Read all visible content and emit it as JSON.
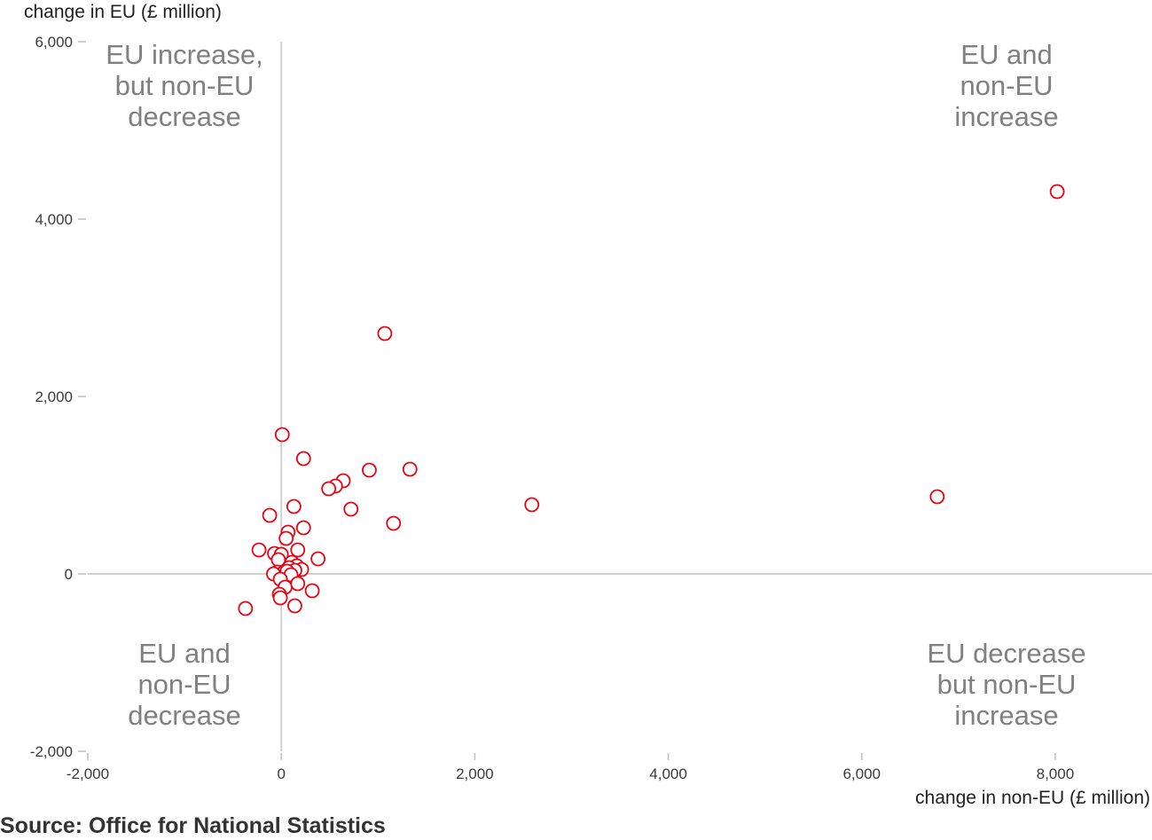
{
  "chart_data": {
    "type": "scatter",
    "xlabel": "change in non-EU (£ million)",
    "ylabel": "change in EU (£ million)",
    "xlim": [
      -2000,
      9000
    ],
    "ylim": [
      -2000,
      6000
    ],
    "x_ticks": [
      -2000,
      0,
      2000,
      4000,
      6000,
      8000
    ],
    "x_tick_labels": [
      "-2,000",
      "0",
      "2,000",
      "4,000",
      "6,000",
      "8,000"
    ],
    "y_ticks": [
      -2000,
      0,
      2000,
      4000,
      6000
    ],
    "y_tick_labels": [
      "-2,000",
      "0",
      "2,000",
      "4,000",
      "6,000"
    ],
    "grid": false,
    "marker_color": "#e30613",
    "quadrant_labels": {
      "top_left": [
        "EU increase,",
        "but non-EU",
        "decrease"
      ],
      "top_right": [
        "EU and",
        "non-EU",
        "increase"
      ],
      "bottom_left": [
        "EU and",
        "non-EU",
        "decrease"
      ],
      "bottom_right": [
        "EU decrease",
        "but non-EU",
        "increase"
      ]
    },
    "points": [
      {
        "x": 8020,
        "y": 4310
      },
      {
        "x": 6780,
        "y": 870
      },
      {
        "x": 1070,
        "y": 2710
      },
      {
        "x": 2590,
        "y": 780
      },
      {
        "x": 1330,
        "y": 1180
      },
      {
        "x": 910,
        "y": 1170
      },
      {
        "x": 1160,
        "y": 570
      },
      {
        "x": 10,
        "y": 1570
      },
      {
        "x": 230,
        "y": 1300
      },
      {
        "x": 640,
        "y": 1050
      },
      {
        "x": 560,
        "y": 990
      },
      {
        "x": 490,
        "y": 960
      },
      {
        "x": 720,
        "y": 730
      },
      {
        "x": 130,
        "y": 760
      },
      {
        "x": -120,
        "y": 660
      },
      {
        "x": 230,
        "y": 520
      },
      {
        "x": 70,
        "y": 470
      },
      {
        "x": 50,
        "y": 400
      },
      {
        "x": 380,
        "y": 170
      },
      {
        "x": -230,
        "y": 270
      },
      {
        "x": 170,
        "y": 270
      },
      {
        "x": -70,
        "y": 230
      },
      {
        "x": 0,
        "y": 220
      },
      {
        "x": -30,
        "y": 160
      },
      {
        "x": 110,
        "y": 130
      },
      {
        "x": 160,
        "y": 90
      },
      {
        "x": 80,
        "y": 70
      },
      {
        "x": 210,
        "y": 50
      },
      {
        "x": 140,
        "y": 40
      },
      {
        "x": -40,
        "y": 20
      },
      {
        "x": 20,
        "y": 10
      },
      {
        "x": -80,
        "y": 0
      },
      {
        "x": 60,
        "y": 30
      },
      {
        "x": 100,
        "y": -10
      },
      {
        "x": -10,
        "y": -60
      },
      {
        "x": 40,
        "y": -150
      },
      {
        "x": 170,
        "y": -110
      },
      {
        "x": -20,
        "y": -230
      },
      {
        "x": 320,
        "y": -190
      },
      {
        "x": -10,
        "y": -270
      },
      {
        "x": 140,
        "y": -360
      },
      {
        "x": -370,
        "y": -390
      }
    ]
  },
  "source": "Source: Office for National Statistics"
}
